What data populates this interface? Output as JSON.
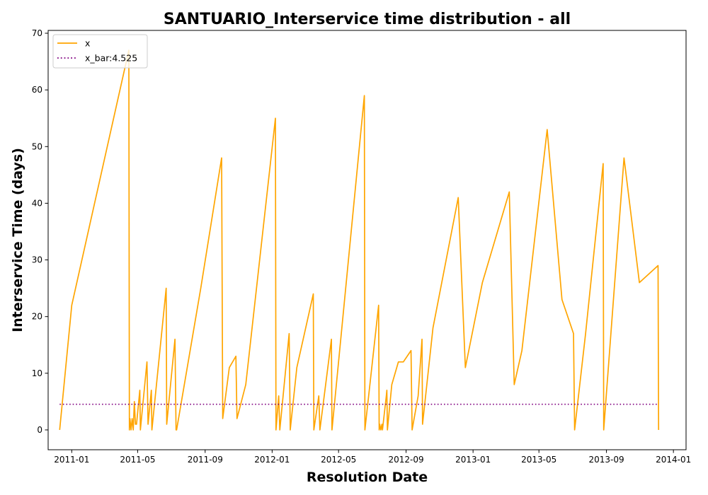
{
  "chart_data": {
    "type": "line",
    "title": "SANTUARIO_Interservice time distribution - all",
    "xlabel": "Resolution Date",
    "ylabel": "Interservice Time (days)",
    "xlim": [
      "2010-11-19",
      "2014-01-24"
    ],
    "ylim": [
      -3.5,
      70.5
    ],
    "xticks": [
      {
        "date": "2011-01-01",
        "label": "2011-01"
      },
      {
        "date": "2011-05-01",
        "label": "2011-05"
      },
      {
        "date": "2011-09-01",
        "label": "2011-09"
      },
      {
        "date": "2012-01-01",
        "label": "2012-01"
      },
      {
        "date": "2012-05-01",
        "label": "2012-05"
      },
      {
        "date": "2012-09-01",
        "label": "2012-09"
      },
      {
        "date": "2013-01-01",
        "label": "2013-01"
      },
      {
        "date": "2013-05-01",
        "label": "2013-05"
      },
      {
        "date": "2013-09-01",
        "label": "2013-09"
      },
      {
        "date": "2014-01-01",
        "label": "2014-01"
      }
    ],
    "yticks": [
      0,
      10,
      20,
      30,
      40,
      50,
      60,
      70
    ],
    "grid": false,
    "legend_position": "upper-left",
    "series": [
      {
        "name": "x",
        "color": "#ffa500",
        "style": "solid",
        "points": [
          [
            "2010-12-10",
            0
          ],
          [
            "2011-01-01",
            22
          ],
          [
            "2011-04-15",
            67
          ],
          [
            "2011-04-16",
            0
          ],
          [
            "2011-04-17",
            2
          ],
          [
            "2011-04-19",
            0
          ],
          [
            "2011-04-21",
            2
          ],
          [
            "2011-04-23",
            0
          ],
          [
            "2011-04-25",
            5
          ],
          [
            "2011-04-27",
            1
          ],
          [
            "2011-04-29",
            1
          ],
          [
            "2011-05-05",
            7
          ],
          [
            "2011-05-06",
            0
          ],
          [
            "2011-05-18",
            12
          ],
          [
            "2011-05-20",
            1
          ],
          [
            "2011-05-26",
            7
          ],
          [
            "2011-05-27",
            0
          ],
          [
            "2011-06-22",
            25
          ],
          [
            "2011-06-23",
            1
          ],
          [
            "2011-07-08",
            16
          ],
          [
            "2011-07-10",
            0
          ],
          [
            "2011-07-11",
            0
          ],
          [
            "2011-08-24",
            25
          ],
          [
            "2011-10-01",
            48
          ],
          [
            "2011-10-03",
            2
          ],
          [
            "2011-10-15",
            11
          ],
          [
            "2011-10-27",
            13
          ],
          [
            "2011-10-29",
            2
          ],
          [
            "2011-11-14",
            8
          ],
          [
            "2012-01-07",
            55
          ],
          [
            "2012-01-08",
            0
          ],
          [
            "2012-01-13",
            6
          ],
          [
            "2012-01-15",
            0
          ],
          [
            "2012-02-01",
            17
          ],
          [
            "2012-02-03",
            0
          ],
          [
            "2012-02-15",
            11
          ],
          [
            "2012-03-16",
            24
          ],
          [
            "2012-03-17",
            0
          ],
          [
            "2012-03-26",
            6
          ],
          [
            "2012-03-28",
            0
          ],
          [
            "2012-04-18",
            16
          ],
          [
            "2012-04-19",
            0
          ],
          [
            "2012-06-17",
            59
          ],
          [
            "2012-06-18",
            0
          ],
          [
            "2012-07-13",
            22
          ],
          [
            "2012-07-14",
            0
          ],
          [
            "2012-07-15",
            1
          ],
          [
            "2012-07-17",
            0
          ],
          [
            "2012-07-19",
            1
          ],
          [
            "2012-07-20",
            0
          ],
          [
            "2012-07-27",
            6
          ],
          [
            "2012-07-28",
            7
          ],
          [
            "2012-07-29",
            0
          ],
          [
            "2012-08-06",
            8
          ],
          [
            "2012-08-18",
            12
          ],
          [
            "2012-08-27",
            12
          ],
          [
            "2012-09-10",
            14
          ],
          [
            "2012-09-12",
            0
          ],
          [
            "2012-09-23",
            6
          ],
          [
            "2012-09-30",
            16
          ],
          [
            "2012-10-01",
            1
          ],
          [
            "2012-10-20",
            18
          ],
          [
            "2012-12-05",
            41
          ],
          [
            "2012-12-18",
            11
          ],
          [
            "2013-01-18",
            26
          ],
          [
            "2013-03-08",
            42
          ],
          [
            "2013-03-17",
            8
          ],
          [
            "2013-03-31",
            14
          ],
          [
            "2013-05-16",
            53
          ],
          [
            "2013-06-12",
            23
          ],
          [
            "2013-07-03",
            17
          ],
          [
            "2013-07-05",
            0
          ],
          [
            "2013-07-25",
            17
          ],
          [
            "2013-08-26",
            47
          ],
          [
            "2013-08-27",
            0
          ],
          [
            "2013-10-03",
            48
          ],
          [
            "2013-10-31",
            26
          ],
          [
            "2013-12-04",
            29
          ],
          [
            "2013-12-05",
            0
          ]
        ]
      },
      {
        "name": "x_bar:4.525",
        "color": "#800080",
        "style": "dotted",
        "points": [
          [
            "2010-12-10",
            4.525
          ],
          [
            "2013-12-05",
            4.525
          ]
        ]
      }
    ]
  }
}
